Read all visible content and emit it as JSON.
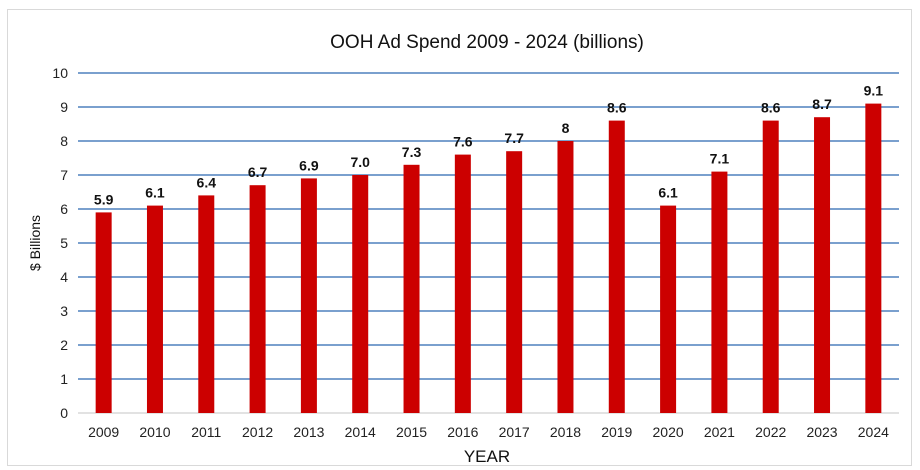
{
  "chart_data": {
    "type": "bar",
    "title": "OOH Ad Spend 2009 - 2024 (billions)",
    "xlabel": "YEAR",
    "ylabel": "$ Billions",
    "categories": [
      "2009",
      "2010",
      "2011",
      "2012",
      "2013",
      "2014",
      "2015",
      "2016",
      "2017",
      "2018",
      "2019",
      "2020",
      "2021",
      "2022",
      "2023",
      "2024"
    ],
    "values": [
      5.9,
      6.1,
      6.4,
      6.7,
      6.9,
      7.0,
      7.3,
      7.6,
      7.7,
      8,
      8.6,
      6.1,
      7.1,
      8.6,
      8.7,
      9.1
    ],
    "data_labels": [
      "5.9",
      "6.1",
      "6.4",
      "6.7",
      "6.9",
      "7.0",
      "7.3",
      "7.6",
      "7.7",
      "8",
      "8.6",
      "6.1",
      "7.1",
      "8.6",
      "8.7",
      "9.1"
    ],
    "ylim": [
      0,
      10
    ],
    "yticks": [
      "0",
      "1",
      "2",
      "3",
      "4",
      "5",
      "6",
      "7",
      "8",
      "9",
      "10"
    ],
    "grid": true,
    "legend": "none",
    "colors": {
      "bar": "#cc0000",
      "grid": "#4f81bd",
      "axis": "#d9d9d9"
    }
  }
}
